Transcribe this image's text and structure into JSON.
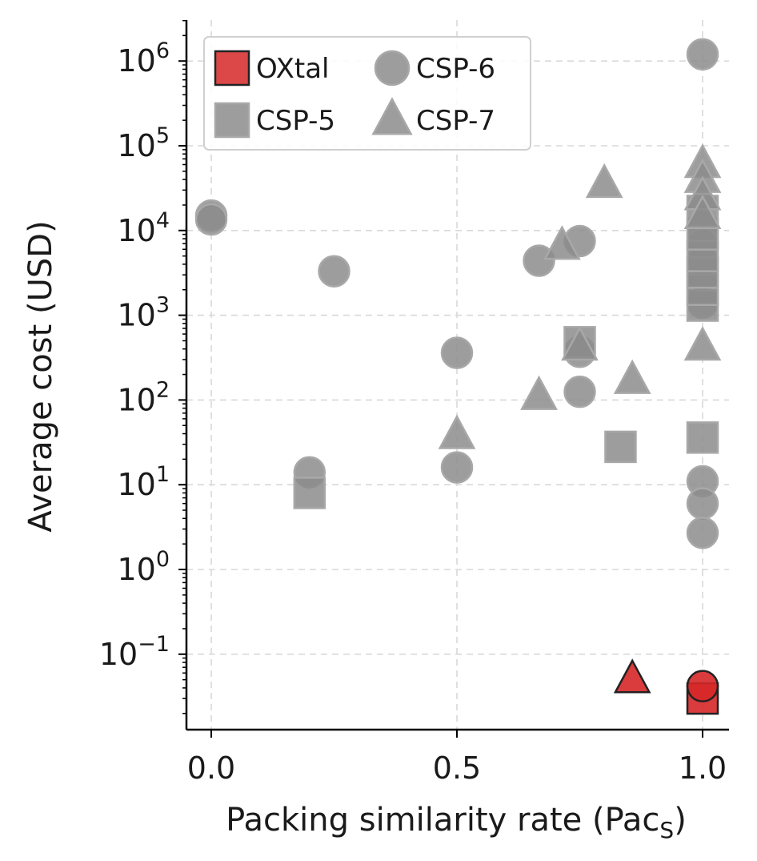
{
  "chart_data": {
    "type": "scatter",
    "title": "",
    "xlabel_main": "Packing similarity rate (Pac",
    "xlabel_sub": "S",
    "xlabel_close": ")",
    "ylabel": "Average cost (USD)",
    "xlim": [
      -0.05,
      1.05
    ],
    "ylim_log10": [
      -1.8,
      6.5
    ],
    "yscale": "log",
    "x_ticks": [
      {
        "value": 0.0,
        "label": "0.0"
      },
      {
        "value": 0.5,
        "label": "0.5"
      },
      {
        "value": 1.0,
        "label": "1.0"
      }
    ],
    "y_ticks": [
      {
        "exp": 6,
        "base": "10",
        "sup": "6"
      },
      {
        "exp": 5,
        "base": "10",
        "sup": "5"
      },
      {
        "exp": 4,
        "base": "10",
        "sup": "4"
      },
      {
        "exp": 3,
        "base": "10",
        "sup": "3"
      },
      {
        "exp": 2,
        "base": "10",
        "sup": "2"
      },
      {
        "exp": 1,
        "base": "10",
        "sup": "1"
      },
      {
        "exp": 0,
        "base": "10",
        "sup": "0"
      },
      {
        "exp": -1,
        "base": "10",
        "sup": "−1"
      }
    ],
    "grid": true,
    "legend_position": "top-left",
    "series": [
      {
        "name": "OXtal",
        "marker": "square",
        "color": "#d62728",
        "edge": "#222222",
        "points": [
          {
            "x": 1.0,
            "y": 0.03
          }
        ]
      },
      {
        "name": "OXtal-circle",
        "legend": false,
        "marker": "circle",
        "color": "#d62728",
        "edge": "#222222",
        "points": [
          {
            "x": 1.0,
            "y": 0.042
          }
        ]
      },
      {
        "name": "OXtal-triangle",
        "legend": false,
        "marker": "triangle",
        "color": "#d62728",
        "edge": "#222222",
        "points": [
          {
            "x": 0.857,
            "y": 0.05
          }
        ]
      },
      {
        "name": "CSP-6",
        "marker": "circle",
        "color": "#8c8c8c",
        "edge": "#a8a8a8",
        "points": [
          {
            "x": 0.0,
            "y": 15000
          },
          {
            "x": 0.0,
            "y": 13500
          },
          {
            "x": 0.25,
            "y": 3300
          },
          {
            "x": 0.5,
            "y": 360
          },
          {
            "x": 0.5,
            "y": 16
          },
          {
            "x": 0.2,
            "y": 14
          },
          {
            "x": 0.667,
            "y": 4400
          },
          {
            "x": 0.75,
            "y": 7500
          },
          {
            "x": 0.75,
            "y": 370
          },
          {
            "x": 0.75,
            "y": 125
          },
          {
            "x": 1.0,
            "y": 1200000
          },
          {
            "x": 1.0,
            "y": 11
          },
          {
            "x": 1.0,
            "y": 6
          },
          {
            "x": 1.0,
            "y": 2.7
          },
          {
            "x": 1.0,
            "y": 11000
          },
          {
            "x": 1.0,
            "y": 7000
          },
          {
            "x": 1.0,
            "y": 4500
          },
          {
            "x": 1.0,
            "y": 3000
          },
          {
            "x": 1.0,
            "y": 1400
          }
        ]
      },
      {
        "name": "CSP-5",
        "marker": "square",
        "color": "#8c8c8c",
        "edge": "#a8a8a8",
        "points": [
          {
            "x": 0.2,
            "y": 8
          },
          {
            "x": 0.75,
            "y": 480
          },
          {
            "x": 0.833,
            "y": 28
          },
          {
            "x": 1.0,
            "y": 36
          },
          {
            "x": 1.0,
            "y": 1300
          },
          {
            "x": 1.0,
            "y": 2000
          },
          {
            "x": 1.0,
            "y": 3200
          },
          {
            "x": 1.0,
            "y": 5000
          },
          {
            "x": 1.0,
            "y": 9000
          },
          {
            "x": 1.0,
            "y": 17000
          }
        ]
      },
      {
        "name": "CSP-7",
        "marker": "triangle",
        "color": "#8c8c8c",
        "edge": "#a8a8a8",
        "points": [
          {
            "x": 0.5,
            "y": 38
          },
          {
            "x": 0.667,
            "y": 110
          },
          {
            "x": 0.714,
            "y": 6500
          },
          {
            "x": 0.75,
            "y": 420
          },
          {
            "x": 0.8,
            "y": 35000
          },
          {
            "x": 0.857,
            "y": 170
          },
          {
            "x": 1.0,
            "y": 420
          },
          {
            "x": 1.0,
            "y": 60000
          },
          {
            "x": 1.0,
            "y": 40000
          },
          {
            "x": 1.0,
            "y": 25000
          },
          {
            "x": 1.0,
            "y": 15000
          }
        ]
      }
    ],
    "legend": [
      {
        "label": "OXtal",
        "marker": "square",
        "color": "#d62728",
        "edge": "#222222"
      },
      {
        "label": "CSP-6",
        "marker": "circle",
        "color": "#8c8c8c",
        "edge": "#a8a8a8"
      },
      {
        "label": "CSP-5",
        "marker": "square",
        "color": "#8c8c8c",
        "edge": "#a8a8a8"
      },
      {
        "label": "CSP-7",
        "marker": "triangle",
        "color": "#8c8c8c",
        "edge": "#a8a8a8"
      }
    ]
  }
}
